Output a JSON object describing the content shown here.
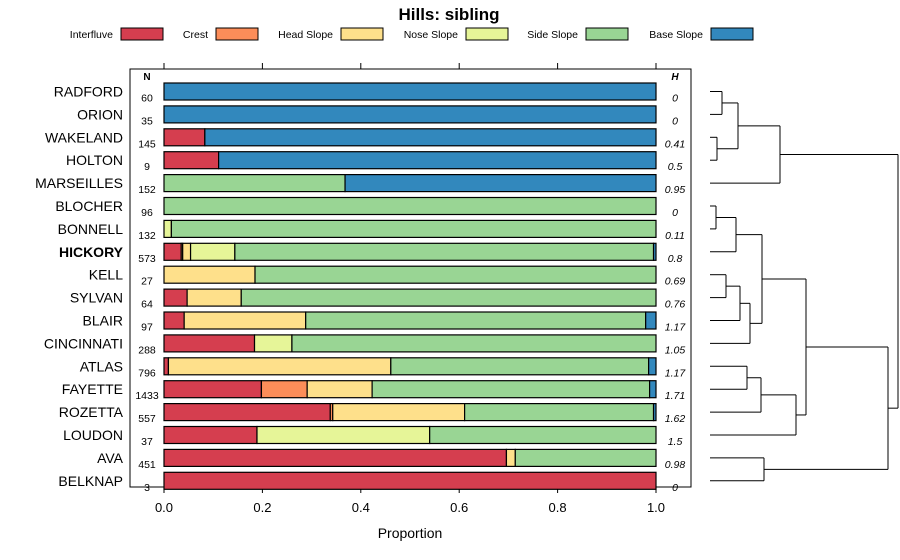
{
  "chart_data": {
    "type": "bar",
    "orientation": "horizontal-stacked",
    "title": "Hills: sibling",
    "xlabel": "Proportion",
    "xlim": [
      0,
      1
    ],
    "x_ticks": [
      "0.0",
      "0.2",
      "0.4",
      "0.6",
      "0.8",
      "1.0"
    ],
    "n_header": "N",
    "h_header": "H",
    "highlight": "HICKORY",
    "series": [
      {
        "name": "Interfluve",
        "color": "#D53E4F"
      },
      {
        "name": "Crest",
        "color": "#FC8D59"
      },
      {
        "name": "Head Slope",
        "color": "#FEE08B"
      },
      {
        "name": "Nose Slope",
        "color": "#E6F598"
      },
      {
        "name": "Side Slope",
        "color": "#99D594"
      },
      {
        "name": "Base Slope",
        "color": "#3288BD"
      }
    ],
    "categories": [
      {
        "name": "RADFORD",
        "n": "60",
        "h": "0",
        "values": [
          0,
          0,
          0,
          0,
          0,
          1.0
        ]
      },
      {
        "name": "ORION",
        "n": "35",
        "h": "0",
        "values": [
          0,
          0,
          0,
          0,
          0,
          1.0
        ]
      },
      {
        "name": "WAKELAND",
        "n": "145",
        "h": "0.41",
        "values": [
          0.083,
          0,
          0,
          0,
          0,
          0.917
        ]
      },
      {
        "name": "HOLTON",
        "n": "9",
        "h": "0.5",
        "values": [
          0.111,
          0,
          0,
          0,
          0,
          0.889
        ]
      },
      {
        "name": "MARSEILLES",
        "n": "152",
        "h": "0.95",
        "values": [
          0,
          0,
          0,
          0,
          0.368,
          0.632
        ]
      },
      {
        "name": "BLOCHER",
        "n": "96",
        "h": "0",
        "values": [
          0,
          0,
          0,
          0,
          1.0,
          0
        ]
      },
      {
        "name": "BONNELL",
        "n": "132",
        "h": "0.11",
        "values": [
          0,
          0,
          0,
          0.015,
          0.985,
          0
        ]
      },
      {
        "name": "HICKORY",
        "n": "573",
        "h": "0.8",
        "values": [
          0.035,
          0.003,
          0.016,
          0.09,
          0.851,
          0.005
        ]
      },
      {
        "name": "KELL",
        "n": "27",
        "h": "0.69",
        "values": [
          0,
          0,
          0.185,
          0,
          0.815,
          0
        ]
      },
      {
        "name": "SYLVAN",
        "n": "64",
        "h": "0.76",
        "values": [
          0.047,
          0,
          0.11,
          0,
          0.843,
          0
        ]
      },
      {
        "name": "BLAIR",
        "n": "97",
        "h": "1.17",
        "values": [
          0.041,
          0,
          0.247,
          0,
          0.691,
          0.021
        ]
      },
      {
        "name": "CINCINNATI",
        "n": "288",
        "h": "1.05",
        "values": [
          0.184,
          0,
          0,
          0.076,
          0.74,
          0
        ]
      },
      {
        "name": "ATLAS",
        "n": "796",
        "h": "1.17",
        "values": [
          0.009,
          0,
          0.452,
          0,
          0.524,
          0.015
        ]
      },
      {
        "name": "FAYETTE",
        "n": "1433",
        "h": "1.71",
        "values": [
          0.198,
          0.093,
          0.132,
          0,
          0.564,
          0.013
        ]
      },
      {
        "name": "ROZETTA",
        "n": "557",
        "h": "1.62",
        "values": [
          0.338,
          0.005,
          0.268,
          0,
          0.384,
          0.005
        ]
      },
      {
        "name": "LOUDON",
        "n": "37",
        "h": "1.5",
        "values": [
          0.189,
          0,
          0,
          0.351,
          0.46,
          0
        ]
      },
      {
        "name": "AVA",
        "n": "451",
        "h": "0.98",
        "values": [
          0.696,
          0,
          0.018,
          0,
          0.286,
          0
        ]
      },
      {
        "name": "BELKNAP",
        "n": "3",
        "h": "0",
        "values": [
          1.0,
          0,
          0,
          0,
          0,
          0
        ]
      }
    ]
  }
}
